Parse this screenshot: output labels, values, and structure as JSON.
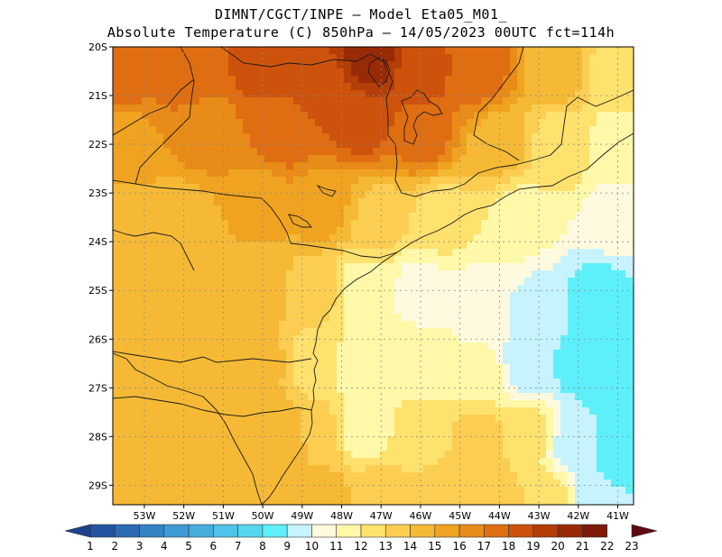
{
  "header": {
    "line1": "DIMNT/CGCT/INPE –  Model Eta05_M01_",
    "line2": "Absolute Temperature (C) 850hPa –  14/05/2023 00UTC fct=114h"
  },
  "map": {
    "lon_range": [
      -53.8,
      -40.6
    ],
    "lat_range": [
      -29.4,
      -20.0
    ],
    "lat_labels": [
      "20S",
      "21S",
      "22S",
      "23S",
      "24S",
      "25S",
      "26S",
      "27S",
      "28S",
      "29S"
    ],
    "lat_values": [
      -20,
      -21,
      -22,
      -23,
      -24,
      -25,
      -26,
      -27,
      -28,
      -29
    ],
    "lon_labels": [
      "53W",
      "52W",
      "51W",
      "50W",
      "49W",
      "48W",
      "47W",
      "46W",
      "45W",
      "44W",
      "43W",
      "42W",
      "41W"
    ],
    "lon_values": [
      -53,
      -52,
      -51,
      -50,
      -49,
      -48,
      -47,
      -46,
      -45,
      -44,
      -43,
      -42,
      -41
    ],
    "grid": true,
    "field_samples": [
      {
        "lon": -53.5,
        "lat": -20.5,
        "t": 18.5
      },
      {
        "lon": -52,
        "lat": -20.5,
        "t": 18.5
      },
      {
        "lon": -50,
        "lat": -20.3,
        "t": 19.5
      },
      {
        "lon": -48.5,
        "lat": -20.8,
        "t": 19.5
      },
      {
        "lon": -47.3,
        "lat": -20.3,
        "t": 21.5
      },
      {
        "lon": -46,
        "lat": -20.5,
        "t": 19.5
      },
      {
        "lon": -44.5,
        "lat": -20.5,
        "t": 18.5
      },
      {
        "lon": -42.5,
        "lat": -20.5,
        "t": 15.5
      },
      {
        "lon": -41,
        "lat": -20.5,
        "t": 13.5
      },
      {
        "lon": -53.5,
        "lat": -22,
        "t": 16.5
      },
      {
        "lon": -51.5,
        "lat": -21.8,
        "t": 17.5
      },
      {
        "lon": -49.5,
        "lat": -21.8,
        "t": 18.5
      },
      {
        "lon": -47.5,
        "lat": -21.5,
        "t": 19.5
      },
      {
        "lon": -46,
        "lat": -21.8,
        "t": 18.5
      },
      {
        "lon": -44,
        "lat": -22,
        "t": 15.5
      },
      {
        "lon": -42.5,
        "lat": -22,
        "t": 13.5
      },
      {
        "lon": -41,
        "lat": -22,
        "t": 12.5
      },
      {
        "lon": -53.5,
        "lat": -23.5,
        "t": 15.5
      },
      {
        "lon": -52,
        "lat": -23.5,
        "t": 15.5
      },
      {
        "lon": -50,
        "lat": -23.2,
        "t": 16.5
      },
      {
        "lon": -48.5,
        "lat": -23.3,
        "t": 16.5
      },
      {
        "lon": -47,
        "lat": -23.5,
        "t": 14.5
      },
      {
        "lon": -45.5,
        "lat": -23.5,
        "t": 13.5
      },
      {
        "lon": -43.5,
        "lat": -23.5,
        "t": 12.5
      },
      {
        "lon": -41,
        "lat": -23.5,
        "t": 11.5
      },
      {
        "lon": -53.5,
        "lat": -25,
        "t": 15.5
      },
      {
        "lon": -51.5,
        "lat": -25,
        "t": 15.5
      },
      {
        "lon": -50,
        "lat": -25,
        "t": 15.5
      },
      {
        "lon": -48.7,
        "lat": -25,
        "t": 14.5
      },
      {
        "lon": -47.5,
        "lat": -25,
        "t": 12.5
      },
      {
        "lon": -46,
        "lat": -25,
        "t": 11.5
      },
      {
        "lon": -44.5,
        "lat": -25.3,
        "t": 11.5
      },
      {
        "lon": -43,
        "lat": -25.5,
        "t": 10.5
      },
      {
        "lon": -41.5,
        "lat": -25.2,
        "t": 9.5
      },
      {
        "lon": -53.5,
        "lat": -26.5,
        "t": 15.5
      },
      {
        "lon": -51.5,
        "lat": -26.5,
        "t": 16.0
      },
      {
        "lon": -50,
        "lat": -26.5,
        "t": 15.5
      },
      {
        "lon": -48.8,
        "lat": -26.5,
        "t": 13.5
      },
      {
        "lon": -47.5,
        "lat": -26.5,
        "t": 12.5
      },
      {
        "lon": -46,
        "lat": -26.5,
        "t": 12.5
      },
      {
        "lon": -44.5,
        "lat": -26.8,
        "t": 12.5
      },
      {
        "lon": -43.3,
        "lat": -26.5,
        "t": 10.5
      },
      {
        "lon": -42,
        "lat": -26.5,
        "t": 9.5
      },
      {
        "lon": -41,
        "lat": -27,
        "t": 9.0
      },
      {
        "lon": -53.5,
        "lat": -28,
        "t": 15.5
      },
      {
        "lon": -52,
        "lat": -28,
        "t": 15.5
      },
      {
        "lon": -50.5,
        "lat": -28,
        "t": 15.5
      },
      {
        "lon": -49.5,
        "lat": -28,
        "t": 16.0
      },
      {
        "lon": -48.5,
        "lat": -28,
        "t": 14.5
      },
      {
        "lon": -47.5,
        "lat": -27.8,
        "t": 12.0
      },
      {
        "lon": -46,
        "lat": -28,
        "t": 13.5
      },
      {
        "lon": -44.5,
        "lat": -28,
        "t": 14.5
      },
      {
        "lon": -43.2,
        "lat": -28,
        "t": 13.5
      },
      {
        "lon": -42.2,
        "lat": -28.2,
        "t": 10.5
      },
      {
        "lon": -41,
        "lat": -28.5,
        "t": 9.5
      },
      {
        "lon": -53.5,
        "lat": -29.3,
        "t": 15.5
      },
      {
        "lon": -51.5,
        "lat": -29.3,
        "t": 15.5
      },
      {
        "lon": -50,
        "lat": -29.2,
        "t": 15.5
      },
      {
        "lon": -48.5,
        "lat": -29.2,
        "t": 15.5
      },
      {
        "lon": -47,
        "lat": -29.2,
        "t": 14.5
      },
      {
        "lon": -45.5,
        "lat": -29.2,
        "t": 14.5
      },
      {
        "lon": -44,
        "lat": -29.2,
        "t": 14.5
      },
      {
        "lon": -42.8,
        "lat": -29.2,
        "t": 13.5
      },
      {
        "lon": -41.5,
        "lat": -29.3,
        "t": 10.5
      }
    ]
  },
  "colorbar": {
    "labels": [
      "1",
      "2",
      "3",
      "4",
      "5",
      "6",
      "7",
      "8",
      "9",
      "10",
      "11",
      "12",
      "13",
      "14",
      "15",
      "16",
      "17",
      "18",
      "19",
      "20",
      "21",
      "22",
      "23"
    ],
    "colors": [
      "#1f3f8f",
      "#24549f",
      "#2b6bb2",
      "#3483c2",
      "#3d9ad2",
      "#46addd",
      "#4fc3e8",
      "#55d7ef",
      "#5ef0fa",
      "#c6f3fe",
      "#fffadf",
      "#fff8a8",
      "#ffe16e",
      "#fbce52",
      "#f5b935",
      "#f0a320",
      "#e88b18",
      "#df6d12",
      "#cd520c",
      "#b33e08",
      "#982a06",
      "#7d1a08",
      "#5c0a10"
    ]
  }
}
